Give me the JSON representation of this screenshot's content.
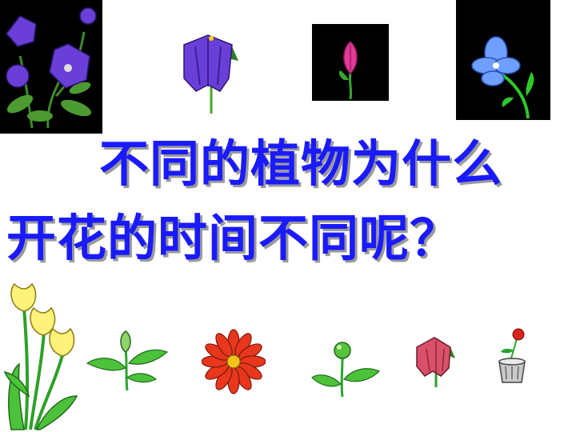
{
  "slide": {
    "title_line_1": "不同的植物为什么",
    "title_line_2": "开花的时间不同呢？",
    "title_color": "#1a1aff",
    "title_shadow_color": "#9a9a9a"
  },
  "images": {
    "top": [
      {
        "name": "balloon-flower-icon"
      },
      {
        "name": "bellflower-icon"
      },
      {
        "name": "pink-bud-on-black-icon"
      },
      {
        "name": "blue-flower-on-black-icon"
      }
    ],
    "bottom": [
      {
        "name": "yellow-tulips-icon"
      },
      {
        "name": "green-bud-with-leaves-icon"
      },
      {
        "name": "red-daisy-icon"
      },
      {
        "name": "green-sprout-icon"
      },
      {
        "name": "red-bell-flower-icon"
      },
      {
        "name": "rose-in-pot-icon"
      }
    ]
  }
}
